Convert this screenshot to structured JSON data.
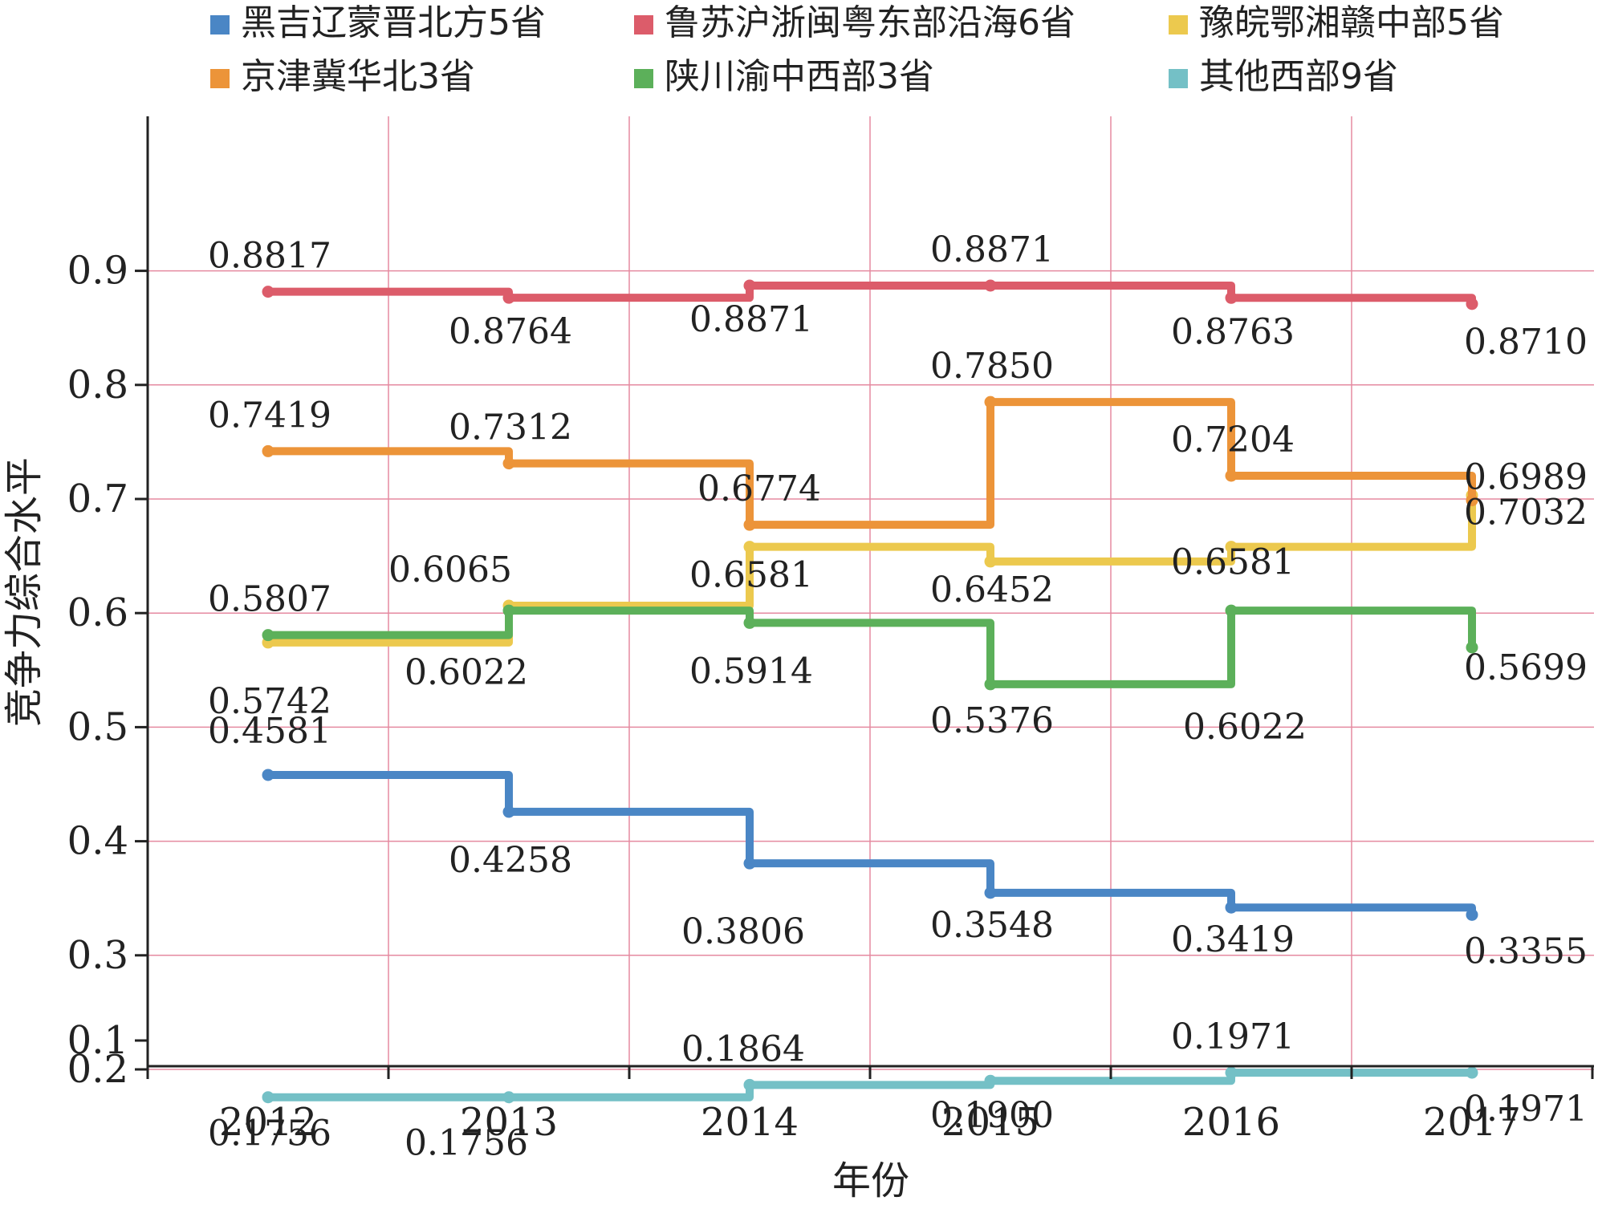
{
  "chart_data": {
    "type": "line",
    "step": true,
    "xlabel": "年份",
    "ylabel": "竞争力综合水平",
    "x": [
      "2012",
      "2013",
      "2014",
      "2015",
      "2016",
      "2017"
    ],
    "yticks": [
      "0.1",
      "0.2",
      "0.3",
      "0.4",
      "0.5",
      "0.6",
      "0.7",
      "0.8",
      "0.9"
    ],
    "ylim": [
      0.1,
      0.93
    ],
    "grid": true,
    "legend_position": "top",
    "series": [
      {
        "name": "黑吉辽蒙晋北方5省",
        "color": "#4a86c5",
        "values": [
          0.4581,
          0.4258,
          0.3806,
          0.3548,
          0.3419,
          0.3355
        ],
        "labels": [
          "0.4581",
          "0.4258",
          "0.3806",
          "0.3548",
          "0.3419",
          "0.3355"
        ]
      },
      {
        "name": "鲁苏沪浙闽粤东部沿海6省",
        "color": "#dc5c6a",
        "values": [
          0.8817,
          0.8764,
          0.8871,
          0.8871,
          0.8763,
          0.871
        ],
        "labels": [
          "0.8817",
          "0.8764",
          "0.8871",
          "0.8871",
          "0.8763",
          "0.8710"
        ]
      },
      {
        "name": "豫皖鄂湘赣中部5省",
        "color": "#ecc94e",
        "values": [
          0.5742,
          0.6065,
          0.6581,
          0.6452,
          0.6581,
          0.7032
        ],
        "labels": [
          "0.5742",
          "0.6065",
          "0.6581",
          "0.6452",
          "0.6581",
          "0.7032"
        ]
      },
      {
        "name": "京津冀华北3省",
        "color": "#ec9439",
        "values": [
          0.7419,
          0.7312,
          0.6774,
          0.785,
          0.7204,
          0.6989
        ],
        "labels": [
          "0.7419",
          "0.7312",
          "0.6774",
          "0.7850",
          "0.7204",
          "0.6989"
        ]
      },
      {
        "name": "陕川渝中西部3省",
        "color": "#5cb05a",
        "values": [
          0.5807,
          0.6022,
          0.5914,
          0.5376,
          0.6022,
          0.5699
        ],
        "labels": [
          "0.5807",
          "0.6022",
          "0.5914",
          "0.5376",
          "0.6022",
          "0.5699"
        ]
      },
      {
        "name": "其他西部9省",
        "color": "#74c0c6",
        "values": [
          0.1756,
          0.1756,
          0.1864,
          0.19,
          0.1971,
          0.1971
        ],
        "labels": [
          "0.1756",
          "0.1756",
          "0.1864",
          "0.1900",
          "0.1971",
          "0.1971"
        ]
      }
    ]
  }
}
